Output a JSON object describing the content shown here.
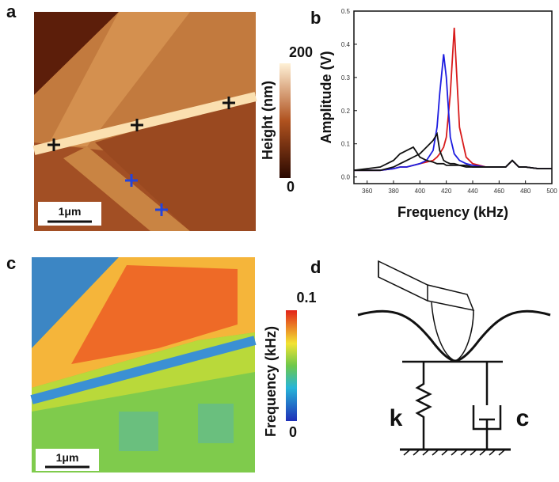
{
  "panels": {
    "a": {
      "label": "a",
      "scale_bar": "1μm",
      "colorbar": {
        "title": "Height (nm)",
        "max": 200,
        "min": 0
      }
    },
    "b": {
      "label": "b"
    },
    "c": {
      "label": "c",
      "scale_bar": "1μm",
      "colorbar": {
        "title": "Frequency (kHz)",
        "max": 0.1,
        "min": 0
      }
    },
    "d": {
      "label": "d",
      "spring": "k",
      "damper": "c"
    }
  },
  "chart_data": {
    "type": "line",
    "x_label": "Frequency (kHz)",
    "y_label": "Amplitude (V)",
    "x": [
      350,
      360,
      370,
      380,
      385,
      390,
      395,
      400,
      405,
      410,
      413,
      415,
      418,
      420,
      423,
      426,
      430,
      435,
      440,
      450,
      460,
      465,
      470,
      475,
      480,
      490,
      500
    ],
    "series": [
      {
        "color": "#d81b1b",
        "values": [
          0.02,
          0.02,
          0.02,
          0.025,
          0.03,
          0.03,
          0.035,
          0.04,
          0.045,
          0.05,
          0.06,
          0.07,
          0.09,
          0.12,
          0.25,
          0.45,
          0.15,
          0.06,
          0.04,
          0.03,
          0.03,
          0.03,
          0.05,
          0.03,
          0.03,
          0.025,
          0.025
        ]
      },
      {
        "color": "#1c1ce0",
        "values": [
          0.02,
          0.02,
          0.02,
          0.025,
          0.03,
          0.03,
          0.035,
          0.04,
          0.05,
          0.08,
          0.15,
          0.25,
          0.37,
          0.3,
          0.12,
          0.07,
          0.05,
          0.04,
          0.035,
          0.03,
          0.03,
          0.03,
          0.05,
          0.03,
          0.03,
          0.025,
          0.025
        ]
      },
      {
        "color": "#111111",
        "values": [
          0.02,
          0.02,
          0.02,
          0.03,
          0.04,
          0.05,
          0.06,
          0.07,
          0.09,
          0.11,
          0.13,
          0.08,
          0.05,
          0.045,
          0.04,
          0.04,
          0.035,
          0.035,
          0.03,
          0.03,
          0.03,
          0.03,
          0.05,
          0.03,
          0.03,
          0.025,
          0.025
        ]
      },
      {
        "color": "#111111",
        "values": [
          0.02,
          0.025,
          0.03,
          0.05,
          0.07,
          0.08,
          0.09,
          0.06,
          0.05,
          0.045,
          0.04,
          0.04,
          0.04,
          0.035,
          0.035,
          0.035,
          0.035,
          0.03,
          0.03,
          0.03,
          0.03,
          0.03,
          0.05,
          0.03,
          0.03,
          0.025,
          0.025
        ]
      }
    ],
    "xlim": [
      350,
      500
    ],
    "ylim": [
      -0.02,
      0.5
    ],
    "xticks": [
      360,
      380,
      400,
      420,
      440,
      460,
      480,
      500
    ],
    "yticks": [
      {
        "value": 0,
        "label": "0.0"
      },
      0.1,
      0.2,
      0.3,
      0.4,
      0.5
    ]
  }
}
